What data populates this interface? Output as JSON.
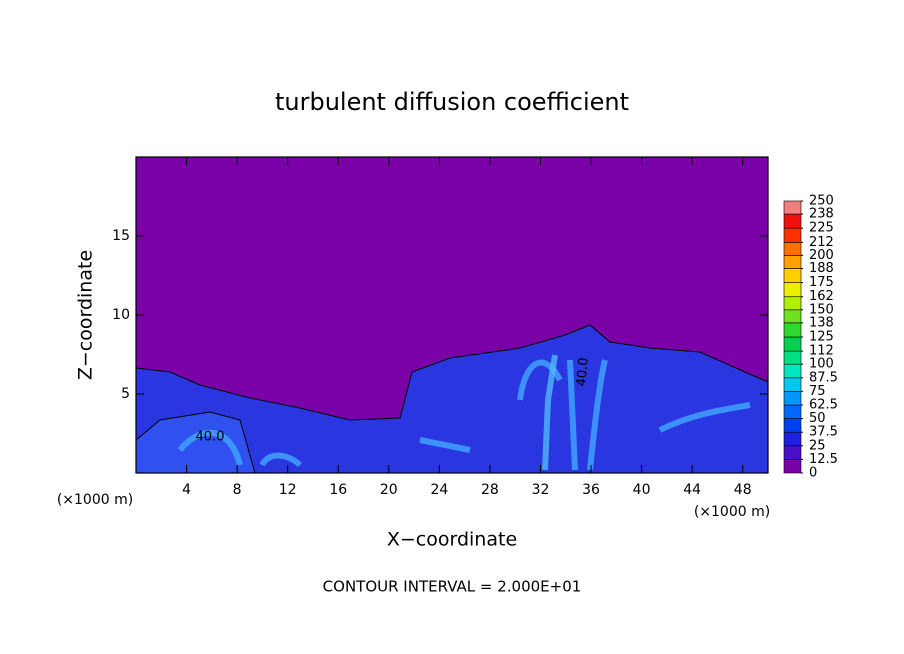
{
  "chart_data": {
    "type": "contour",
    "title": "turbulent diffusion coefficient",
    "xlabel": "X−coordinate",
    "ylabel": "Z−coordinate",
    "x_unit_label": "(×1000 m)",
    "y_unit_label": "(×1000 m)",
    "footer": "CONTOUR INTERVAL = 2.000E+01",
    "contour_labels": [
      "40.0",
      "40.0"
    ],
    "xlim": [
      0,
      50
    ],
    "xticks": [
      4,
      8,
      12,
      16,
      20,
      24,
      28,
      32,
      36,
      40,
      44,
      48
    ],
    "ylim": [
      0,
      20
    ],
    "yticks": [
      5,
      10,
      15
    ],
    "background_color": "#7a00a8",
    "colorbar": {
      "levels": [
        0,
        12.5,
        25,
        37.5,
        50,
        62.5,
        75,
        87.5,
        100,
        112,
        125,
        138,
        150,
        162,
        175,
        188,
        200,
        212,
        225,
        238,
        250
      ],
      "colors": [
        "#7a00a8",
        "#4a10c8",
        "#2020e0",
        "#0040f0",
        "#0068ff",
        "#0098ff",
        "#00c8f0",
        "#00e8c0",
        "#00e080",
        "#00d050",
        "#30d830",
        "#70e020",
        "#b0f000",
        "#e8f000",
        "#ffd000",
        "#ffa000",
        "#ff7000",
        "#ff3000",
        "#f01010",
        "#f08080"
      ]
    }
  }
}
